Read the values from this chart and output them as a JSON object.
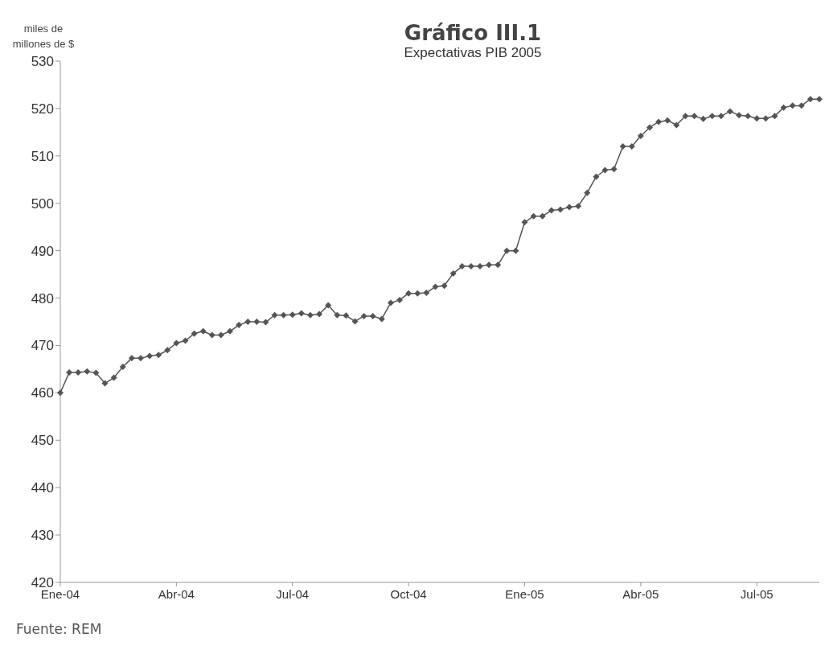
{
  "chart_data": {
    "type": "line",
    "title": "Gráfico III.1",
    "subtitle": "Expectativas PIB 2005",
    "ylabel": "miles de millones de $",
    "annotations": [
      "Fuente: REM"
    ],
    "categories": [
      "Ene-04",
      null,
      null,
      null,
      null,
      null,
      null,
      null,
      null,
      null,
      null,
      null,
      null,
      "Abr-04",
      null,
      null,
      null,
      null,
      null,
      null,
      null,
      null,
      null,
      null,
      null,
      null,
      "Jul-04",
      null,
      null,
      null,
      null,
      null,
      null,
      null,
      null,
      null,
      null,
      null,
      null,
      "Oct-04",
      null,
      null,
      null,
      null,
      null,
      null,
      null,
      null,
      null,
      null,
      null,
      null,
      "Ene-05",
      null,
      null,
      null,
      null,
      null,
      null,
      null,
      null,
      null,
      null,
      null,
      null,
      "Abr-05",
      null,
      null,
      null,
      null,
      null,
      null,
      null,
      null,
      null,
      null,
      null,
      null,
      "Jul-05",
      null,
      null,
      null,
      null,
      null,
      null,
      null
    ],
    "series": [
      {
        "color": "#555555",
        "values": [
          460,
          464.3,
          464.3,
          464.5,
          464.2,
          462,
          463.2,
          465.5,
          467.3,
          467.3,
          467.8,
          468,
          469,
          470.5,
          471,
          472.5,
          473,
          472.2,
          472.2,
          473,
          474.3,
          475,
          475,
          474.9,
          476.4,
          476.4,
          476.5,
          476.8,
          476.4,
          476.6,
          478.5,
          476.4,
          476.3,
          475.1,
          476.2,
          476.2,
          475.6,
          479,
          479.6,
          481,
          481,
          481.1,
          482.4,
          482.6,
          485.2,
          486.7,
          486.7,
          486.7,
          487,
          487,
          490,
          490,
          496,
          497.3,
          497.3,
          498.5,
          498.7,
          499.2,
          499.4,
          502.2,
          505.6,
          507,
          507.2,
          512,
          512,
          514.2,
          516,
          517.2,
          517.5,
          516.5,
          518.4,
          518.4,
          517.8,
          518.4,
          518.4,
          519.4,
          518.6,
          518.4,
          517.9,
          517.9,
          518.4,
          520.2,
          520.6,
          520.6,
          522,
          522
        ]
      }
    ],
    "ylim": [
      420,
      530
    ],
    "yticks": [
      420,
      430,
      440,
      450,
      460,
      470,
      480,
      490,
      500,
      510,
      520,
      530
    ],
    "marker": "diamond",
    "line_style": "solid",
    "grid": false,
    "legend": false
  }
}
